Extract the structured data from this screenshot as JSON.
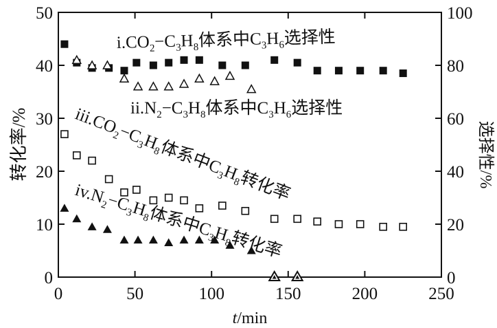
{
  "chart_data": {
    "type": "scatter",
    "xlabel_italic": "t",
    "xlabel_unit": "/min",
    "ylabel_left": "转化率/%",
    "ylabel_right": "选择性/%",
    "xlim": [
      0,
      250
    ],
    "ylim_left": [
      0,
      50
    ],
    "ylim_right": [
      0,
      100
    ],
    "x_ticks": [
      0,
      50,
      100,
      150,
      200,
      250
    ],
    "y_ticks_left": [
      0,
      10,
      20,
      30,
      40,
      50
    ],
    "y_ticks_right": [
      0,
      20,
      40,
      60,
      80,
      100
    ],
    "series": [
      {
        "name": "i.CO2−C3H8体系中C3H6选择性",
        "axis": "right",
        "marker": "filled-square",
        "x": [
          4,
          12,
          22,
          33,
          43,
          51,
          62,
          72,
          82,
          92,
          107,
          122,
          141,
          156,
          169,
          183,
          197,
          212,
          225
        ],
        "y": [
          88,
          81,
          79,
          79,
          78,
          81,
          80,
          81,
          82,
          82,
          80,
          80,
          82,
          81,
          78,
          78,
          78,
          78,
          77
        ]
      },
      {
        "name": "ii.N2−C3H8体系中C3H6选择性",
        "axis": "right",
        "marker": "open-triangle",
        "x": [
          12,
          22,
          32,
          43,
          52,
          62,
          72,
          82,
          92,
          102,
          112,
          126
        ],
        "y": [
          82,
          80,
          80,
          75,
          72,
          72,
          72,
          73,
          75,
          74,
          76,
          71
        ]
      },
      {
        "name": "iii.CO2−C3H8体系中C3H8转化率",
        "axis": "left",
        "marker": "open-square",
        "x": [
          4,
          12,
          22,
          33,
          43,
          51,
          62,
          72,
          82,
          92,
          107,
          122,
          141,
          156,
          169,
          183,
          197,
          212,
          225
        ],
        "y": [
          27,
          23,
          22,
          18.5,
          16,
          16.5,
          14.5,
          15,
          14.5,
          13,
          13.5,
          12.5,
          11,
          11,
          10.5,
          10,
          10,
          9.5,
          9.5
        ]
      },
      {
        "name": "iv.N2−C3H8体系中C3H8转化率",
        "axis": "left",
        "marker": "filled-triangle",
        "x": [
          4,
          12,
          22,
          32,
          43,
          52,
          62,
          72,
          82,
          92,
          102,
          112,
          126
        ],
        "y": [
          13,
          11,
          9.5,
          9,
          7,
          7,
          7,
          6.5,
          7,
          7,
          7,
          6,
          5
        ]
      },
      {
        "name": "",
        "axis": "left",
        "marker": "open-triangle-filled-center",
        "x": [
          141,
          156
        ],
        "y": [
          0,
          0
        ]
      }
    ]
  },
  "annotations": {
    "i": {
      "prefix": "i.CO",
      "sub1": "2",
      "mid1": "−C",
      "sub2": "3",
      "mid2": "H",
      "sub3": "8",
      "mid3": "体系中C",
      "sub4": "3",
      "mid4": "H",
      "sub5": "6",
      "suffix": "选择性"
    },
    "ii": {
      "prefix": "ii.N",
      "sub1": "2",
      "mid1": "−C",
      "sub2": "3",
      "mid2": "H",
      "sub3": "8",
      "mid3": "体系中C",
      "sub4": "3",
      "mid4": "H",
      "sub5": "6",
      "suffix": "选择性"
    },
    "iii": {
      "prefix": "iii.CO",
      "sub1": "2",
      "mid1": "−C",
      "sub2": "3",
      "mid2": "H",
      "sub3": "8",
      "mid3": "体系中C",
      "sub4": "3",
      "mid4": "H",
      "sub5": "8",
      "suffix": "转化率"
    },
    "iv": {
      "prefix": "iv.N",
      "sub1": "2",
      "mid1": "−C",
      "sub2": "3",
      "mid2": "H",
      "sub3": "8",
      "mid3": "体系中C",
      "sub4": "3",
      "mid4": "H",
      "sub5": "8",
      "suffix": "转化率"
    }
  }
}
